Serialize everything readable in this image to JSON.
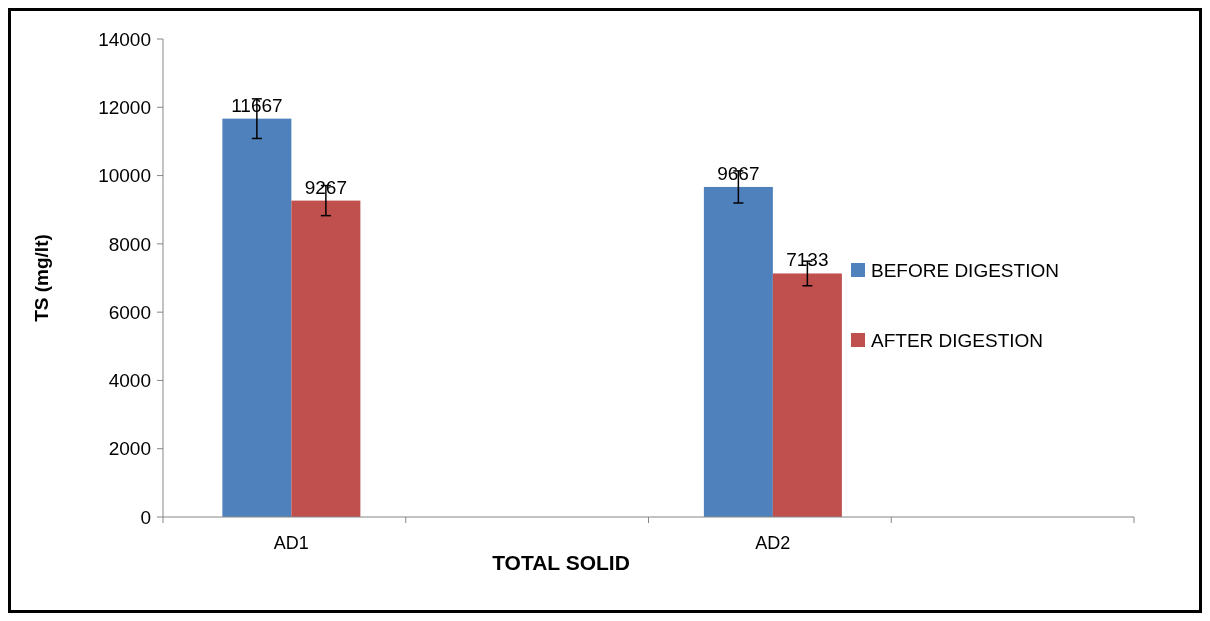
{
  "chart_data": {
    "type": "bar",
    "xlabel": "TOTAL SOLID",
    "ylabel": "TS (mg/lt)",
    "categories": [
      "AD1",
      null,
      "AD2",
      null
    ],
    "series": [
      {
        "name": "BEFORE DIGESTION",
        "color": "#4f81bd",
        "values": [
          11667,
          null,
          9667,
          null
        ],
        "errors": [
          580,
          null,
          470,
          null
        ]
      },
      {
        "name": "AFTER DIGESTION",
        "color": "#c0504d",
        "values": [
          9267,
          null,
          7133,
          null
        ],
        "errors": [
          440,
          null,
          360,
          null
        ]
      }
    ],
    "ylim": [
      0,
      14000
    ],
    "yticks": [
      0,
      2000,
      4000,
      6000,
      8000,
      10000,
      12000,
      14000
    ],
    "grid": false,
    "legend": "right",
    "data_labels": true
  }
}
